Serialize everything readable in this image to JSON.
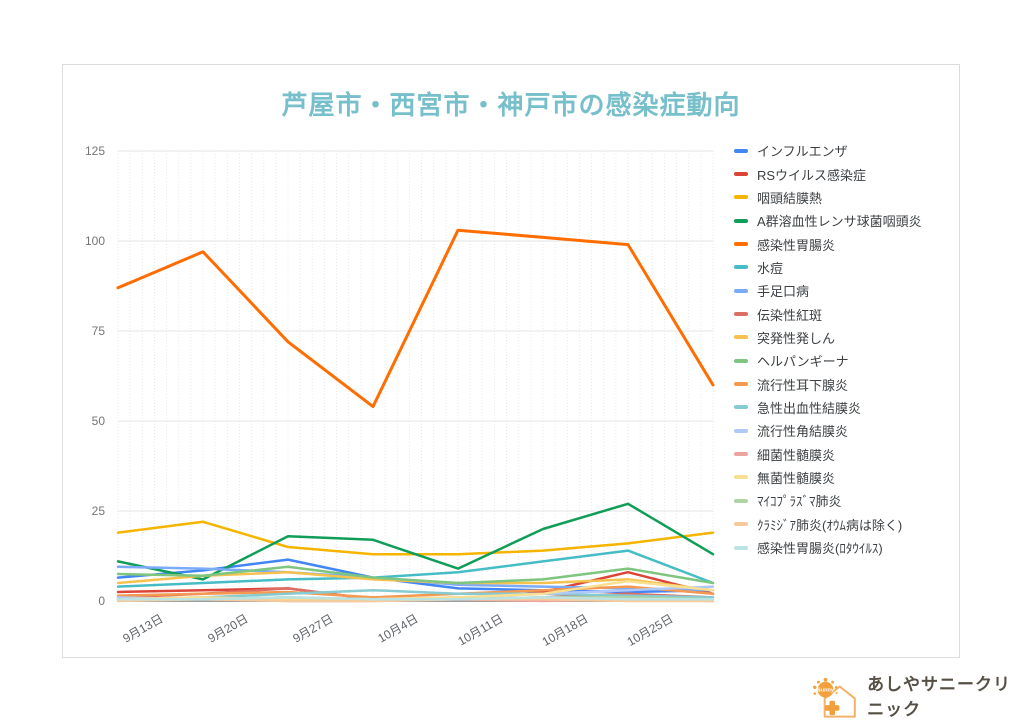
{
  "chart_data": {
    "type": "line",
    "title": "芦屋市・西宮市・神戸市の感染症動向",
    "x_labels": [
      "9月13日",
      "9月20日",
      "9月27日",
      "10月4日",
      "10月11日",
      "10月18日",
      "10月25日"
    ],
    "num_points": 8,
    "ylim": [
      0,
      125
    ],
    "yticks": [
      0,
      25,
      50,
      75,
      100,
      125
    ],
    "legend_position": "right",
    "grid": {
      "horizontal_major": true,
      "vertical_daily_minor": true
    },
    "series": [
      {
        "name": "インフルエンザ",
        "color": "#4285F4",
        "values": [
          6.5,
          8.5,
          11.5,
          6.5,
          3.5,
          3,
          2.5,
          3
        ]
      },
      {
        "name": "RSウイルス感染症",
        "color": "#DB4437",
        "values": [
          2.5,
          3,
          3.5,
          0.5,
          0.5,
          2.5,
          8,
          2
        ]
      },
      {
        "name": "咽頭結膜熱",
        "color": "#F4B400",
        "values": [
          19,
          22,
          15,
          13,
          13,
          14,
          16,
          19
        ]
      },
      {
        "name": "A群溶血性レンサ球菌咽頭炎",
        "color": "#0F9D58",
        "values": [
          11,
          6,
          18,
          17,
          9,
          20,
          27,
          13
        ]
      },
      {
        "name": "感染性胃腸炎",
        "color": "#FF6D01",
        "values": [
          87,
          97,
          72,
          54,
          103,
          101,
          99,
          60
        ]
      },
      {
        "name": "水痘",
        "color": "#46BDC6",
        "values": [
          4,
          5,
          6,
          6.5,
          8,
          11,
          14,
          5
        ]
      },
      {
        "name": "手足口病",
        "color": "#7BAAF7",
        "values": [
          9.5,
          9,
          8,
          6.5,
          4.5,
          4,
          3.5,
          3
        ]
      },
      {
        "name": "伝染性紅斑",
        "color": "#DD6E63",
        "values": [
          1,
          2,
          3.5,
          0.5,
          0.5,
          1,
          2,
          1
        ]
      },
      {
        "name": "突発性発しん",
        "color": "#F6C24E",
        "values": [
          5,
          7,
          8,
          6,
          5,
          5,
          6,
          3
        ]
      },
      {
        "name": "ヘルパンギーナ",
        "color": "#7EC57F",
        "values": [
          7.5,
          7,
          9.5,
          6.5,
          5,
          6,
          9,
          5
        ]
      },
      {
        "name": "流行性耳下腺炎",
        "color": "#F49951",
        "values": [
          1.5,
          2,
          2.5,
          1,
          2,
          3,
          4,
          2
        ]
      },
      {
        "name": "急性出血性結膜炎",
        "color": "#85CBD1",
        "values": [
          0.5,
          1,
          2,
          3,
          2,
          2,
          1.5,
          1
        ]
      },
      {
        "name": "流行性角結膜炎",
        "color": "#AFC8F8",
        "values": [
          1,
          0.5,
          1,
          0.5,
          1,
          2,
          3,
          4
        ]
      },
      {
        "name": "細菌性髄膜炎",
        "color": "#EDA49E",
        "values": [
          0.5,
          0.5,
          0,
          0,
          0.5,
          0,
          0.5,
          0
        ]
      },
      {
        "name": "無菌性髄膜炎",
        "color": "#F9DF90",
        "values": [
          0.5,
          1,
          0.5,
          0.5,
          1,
          2,
          5.5,
          3
        ]
      },
      {
        "name": "ﾏｲｺﾌﾟﾗｽﾞﾏ肺炎",
        "color": "#AFD5A5",
        "values": [
          0.5,
          0.5,
          1,
          0.5,
          0.5,
          1,
          1,
          0.5
        ]
      },
      {
        "name": "ｸﾗﾐｼﾞｱ肺炎(ｵｳﾑ病は除く)",
        "color": "#F6CB9C",
        "values": [
          0,
          0.5,
          0,
          0,
          0.5,
          0.5,
          0,
          0
        ]
      },
      {
        "name": "感染性胃腸炎(ﾛﾀｳｲﾙｽ)",
        "color": "#BCE3E3",
        "values": [
          0.5,
          0.5,
          1,
          0.5,
          0.5,
          1,
          0.5,
          0.5
        ]
      }
    ]
  },
  "footer": {
    "clinic_name": "あしやサニークリニック",
    "logo_badge": "Sunny"
  },
  "style": {
    "title_color": "#76BFCB",
    "axis_label_color": "#757575",
    "x_label_color": "#5f6368",
    "legend_text_color": "#3c4043",
    "gridline_color": "#e6e6e6",
    "baseline_color": "#9e9e9e",
    "logo_orange": "#F0A03C",
    "logo_text_color": "#564F45"
  }
}
